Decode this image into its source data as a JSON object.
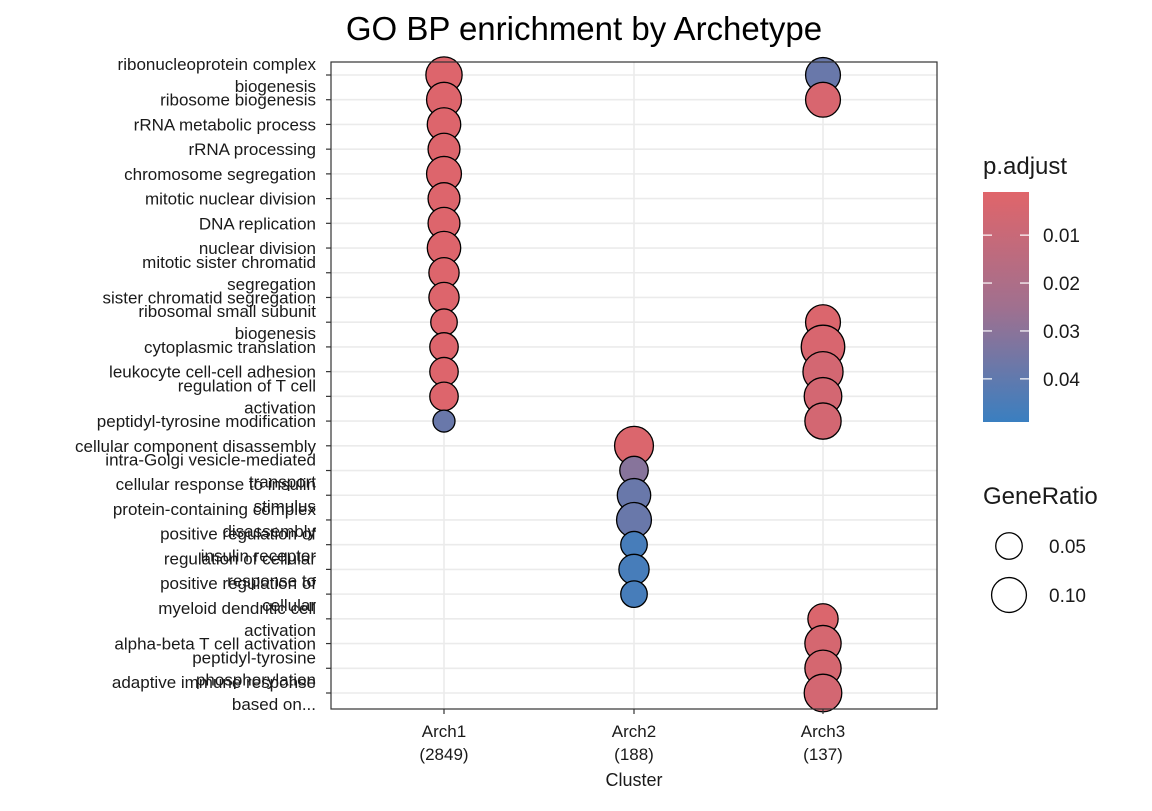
{
  "chart_data": {
    "type": "scatter",
    "title": "GO BP enrichment by Archetype",
    "xlabel": "Cluster",
    "ylabel": "",
    "grid": true,
    "legend_position": "right",
    "x_categories": [
      {
        "line1": "Arch1",
        "line2": "(2849)"
      },
      {
        "line1": "Arch2",
        "line2": "(188)"
      },
      {
        "line1": "Arch3",
        "line2": "(137)"
      }
    ],
    "terms": [
      [
        "ribonucleoprotein complex",
        "biogenesis"
      ],
      [
        "ribosome biogenesis"
      ],
      [
        "rRNA metabolic process"
      ],
      [
        "rRNA processing"
      ],
      [
        "chromosome segregation"
      ],
      [
        "mitotic nuclear division"
      ],
      [
        "DNA replication"
      ],
      [
        "nuclear division"
      ],
      [
        "mitotic sister chromatid",
        "segregation"
      ],
      [
        "sister chromatid segregation"
      ],
      [
        "ribosomal small subunit",
        "biogenesis"
      ],
      [
        "cytoplasmic translation"
      ],
      [
        "leukocyte cell-cell adhesion"
      ],
      [
        "regulation of T cell",
        "activation"
      ],
      [
        "peptidyl-tyrosine modification"
      ],
      [
        "cellular component disassembly"
      ],
      [
        "intra-Golgi vesicle-mediated",
        "transport"
      ],
      [
        "cellular response to insulin",
        "stimulus"
      ],
      [
        "protein-containing complex",
        "disassembly"
      ],
      [
        "positive regulation of",
        "insulin receptor"
      ],
      [
        "regulation of cellular",
        "response to"
      ],
      [
        "positive regulation of",
        "cellular"
      ],
      [
        "myeloid dendritic cell",
        "activation"
      ],
      [
        "alpha-beta T cell activation"
      ],
      [
        "peptidyl-tyrosine",
        "phosphorylation"
      ],
      [
        "adaptive immune response",
        "based on..."
      ]
    ],
    "points": [
      {
        "term": 0,
        "cluster": 0,
        "gene_ratio": 0.11,
        "p_adjust": 0.002
      },
      {
        "term": 0,
        "cluster": 2,
        "gene_ratio": 0.1,
        "p_adjust": 0.038
      },
      {
        "term": 1,
        "cluster": 0,
        "gene_ratio": 0.1,
        "p_adjust": 0.002
      },
      {
        "term": 1,
        "cluster": 2,
        "gene_ratio": 0.1,
        "p_adjust": 0.004
      },
      {
        "term": 2,
        "cluster": 0,
        "gene_ratio": 0.09,
        "p_adjust": 0.002
      },
      {
        "term": 3,
        "cluster": 0,
        "gene_ratio": 0.08,
        "p_adjust": 0.002
      },
      {
        "term": 4,
        "cluster": 0,
        "gene_ratio": 0.1,
        "p_adjust": 0.002
      },
      {
        "term": 5,
        "cluster": 0,
        "gene_ratio": 0.08,
        "p_adjust": 0.002
      },
      {
        "term": 6,
        "cluster": 0,
        "gene_ratio": 0.08,
        "p_adjust": 0.002
      },
      {
        "term": 7,
        "cluster": 0,
        "gene_ratio": 0.09,
        "p_adjust": 0.002
      },
      {
        "term": 8,
        "cluster": 0,
        "gene_ratio": 0.07,
        "p_adjust": 0.002
      },
      {
        "term": 9,
        "cluster": 0,
        "gene_ratio": 0.07,
        "p_adjust": 0.002
      },
      {
        "term": 10,
        "cluster": 0,
        "gene_ratio": 0.05,
        "p_adjust": 0.002
      },
      {
        "term": 10,
        "cluster": 2,
        "gene_ratio": 0.1,
        "p_adjust": 0.003
      },
      {
        "term": 11,
        "cluster": 0,
        "gene_ratio": 0.06,
        "p_adjust": 0.002
      },
      {
        "term": 11,
        "cluster": 2,
        "gene_ratio": 0.17,
        "p_adjust": 0.004
      },
      {
        "term": 12,
        "cluster": 0,
        "gene_ratio": 0.06,
        "p_adjust": 0.002
      },
      {
        "term": 12,
        "cluster": 2,
        "gene_ratio": 0.14,
        "p_adjust": 0.006
      },
      {
        "term": 13,
        "cluster": 0,
        "gene_ratio": 0.06,
        "p_adjust": 0.002
      },
      {
        "term": 13,
        "cluster": 2,
        "gene_ratio": 0.12,
        "p_adjust": 0.006
      },
      {
        "term": 14,
        "cluster": 0,
        "gene_ratio": 0.03,
        "p_adjust": 0.038
      },
      {
        "term": 14,
        "cluster": 2,
        "gene_ratio": 0.11,
        "p_adjust": 0.006
      },
      {
        "term": 15,
        "cluster": 1,
        "gene_ratio": 0.13,
        "p_adjust": 0.003
      },
      {
        "term": 16,
        "cluster": 1,
        "gene_ratio": 0.06,
        "p_adjust": 0.031
      },
      {
        "term": 17,
        "cluster": 1,
        "gene_ratio": 0.09,
        "p_adjust": 0.038
      },
      {
        "term": 18,
        "cluster": 1,
        "gene_ratio": 0.1,
        "p_adjust": 0.038
      },
      {
        "term": 19,
        "cluster": 1,
        "gene_ratio": 0.05,
        "p_adjust": 0.046
      },
      {
        "term": 20,
        "cluster": 1,
        "gene_ratio": 0.07,
        "p_adjust": 0.046
      },
      {
        "term": 21,
        "cluster": 1,
        "gene_ratio": 0.05,
        "p_adjust": 0.046
      },
      {
        "term": 22,
        "cluster": 2,
        "gene_ratio": 0.07,
        "p_adjust": 0.003
      },
      {
        "term": 23,
        "cluster": 2,
        "gene_ratio": 0.11,
        "p_adjust": 0.005
      },
      {
        "term": 24,
        "cluster": 2,
        "gene_ratio": 0.11,
        "p_adjust": 0.005
      },
      {
        "term": 25,
        "cluster": 2,
        "gene_ratio": 0.12,
        "p_adjust": 0.006
      }
    ],
    "color_legend": {
      "title": "p.adjust",
      "ticks": [
        0.01,
        0.02,
        0.03,
        0.04
      ],
      "tick_labels": [
        "0.01",
        "0.02",
        "0.03",
        "0.04"
      ],
      "range": [
        0.001,
        0.049
      ],
      "low_color": "#e0656a",
      "mid_color": "#a0708f",
      "high_color": "#3a7fc0"
    },
    "size_legend": {
      "title": "GeneRatio",
      "values": [
        0.05,
        0.1
      ],
      "labels": [
        "0.05",
        "0.10"
      ]
    }
  }
}
